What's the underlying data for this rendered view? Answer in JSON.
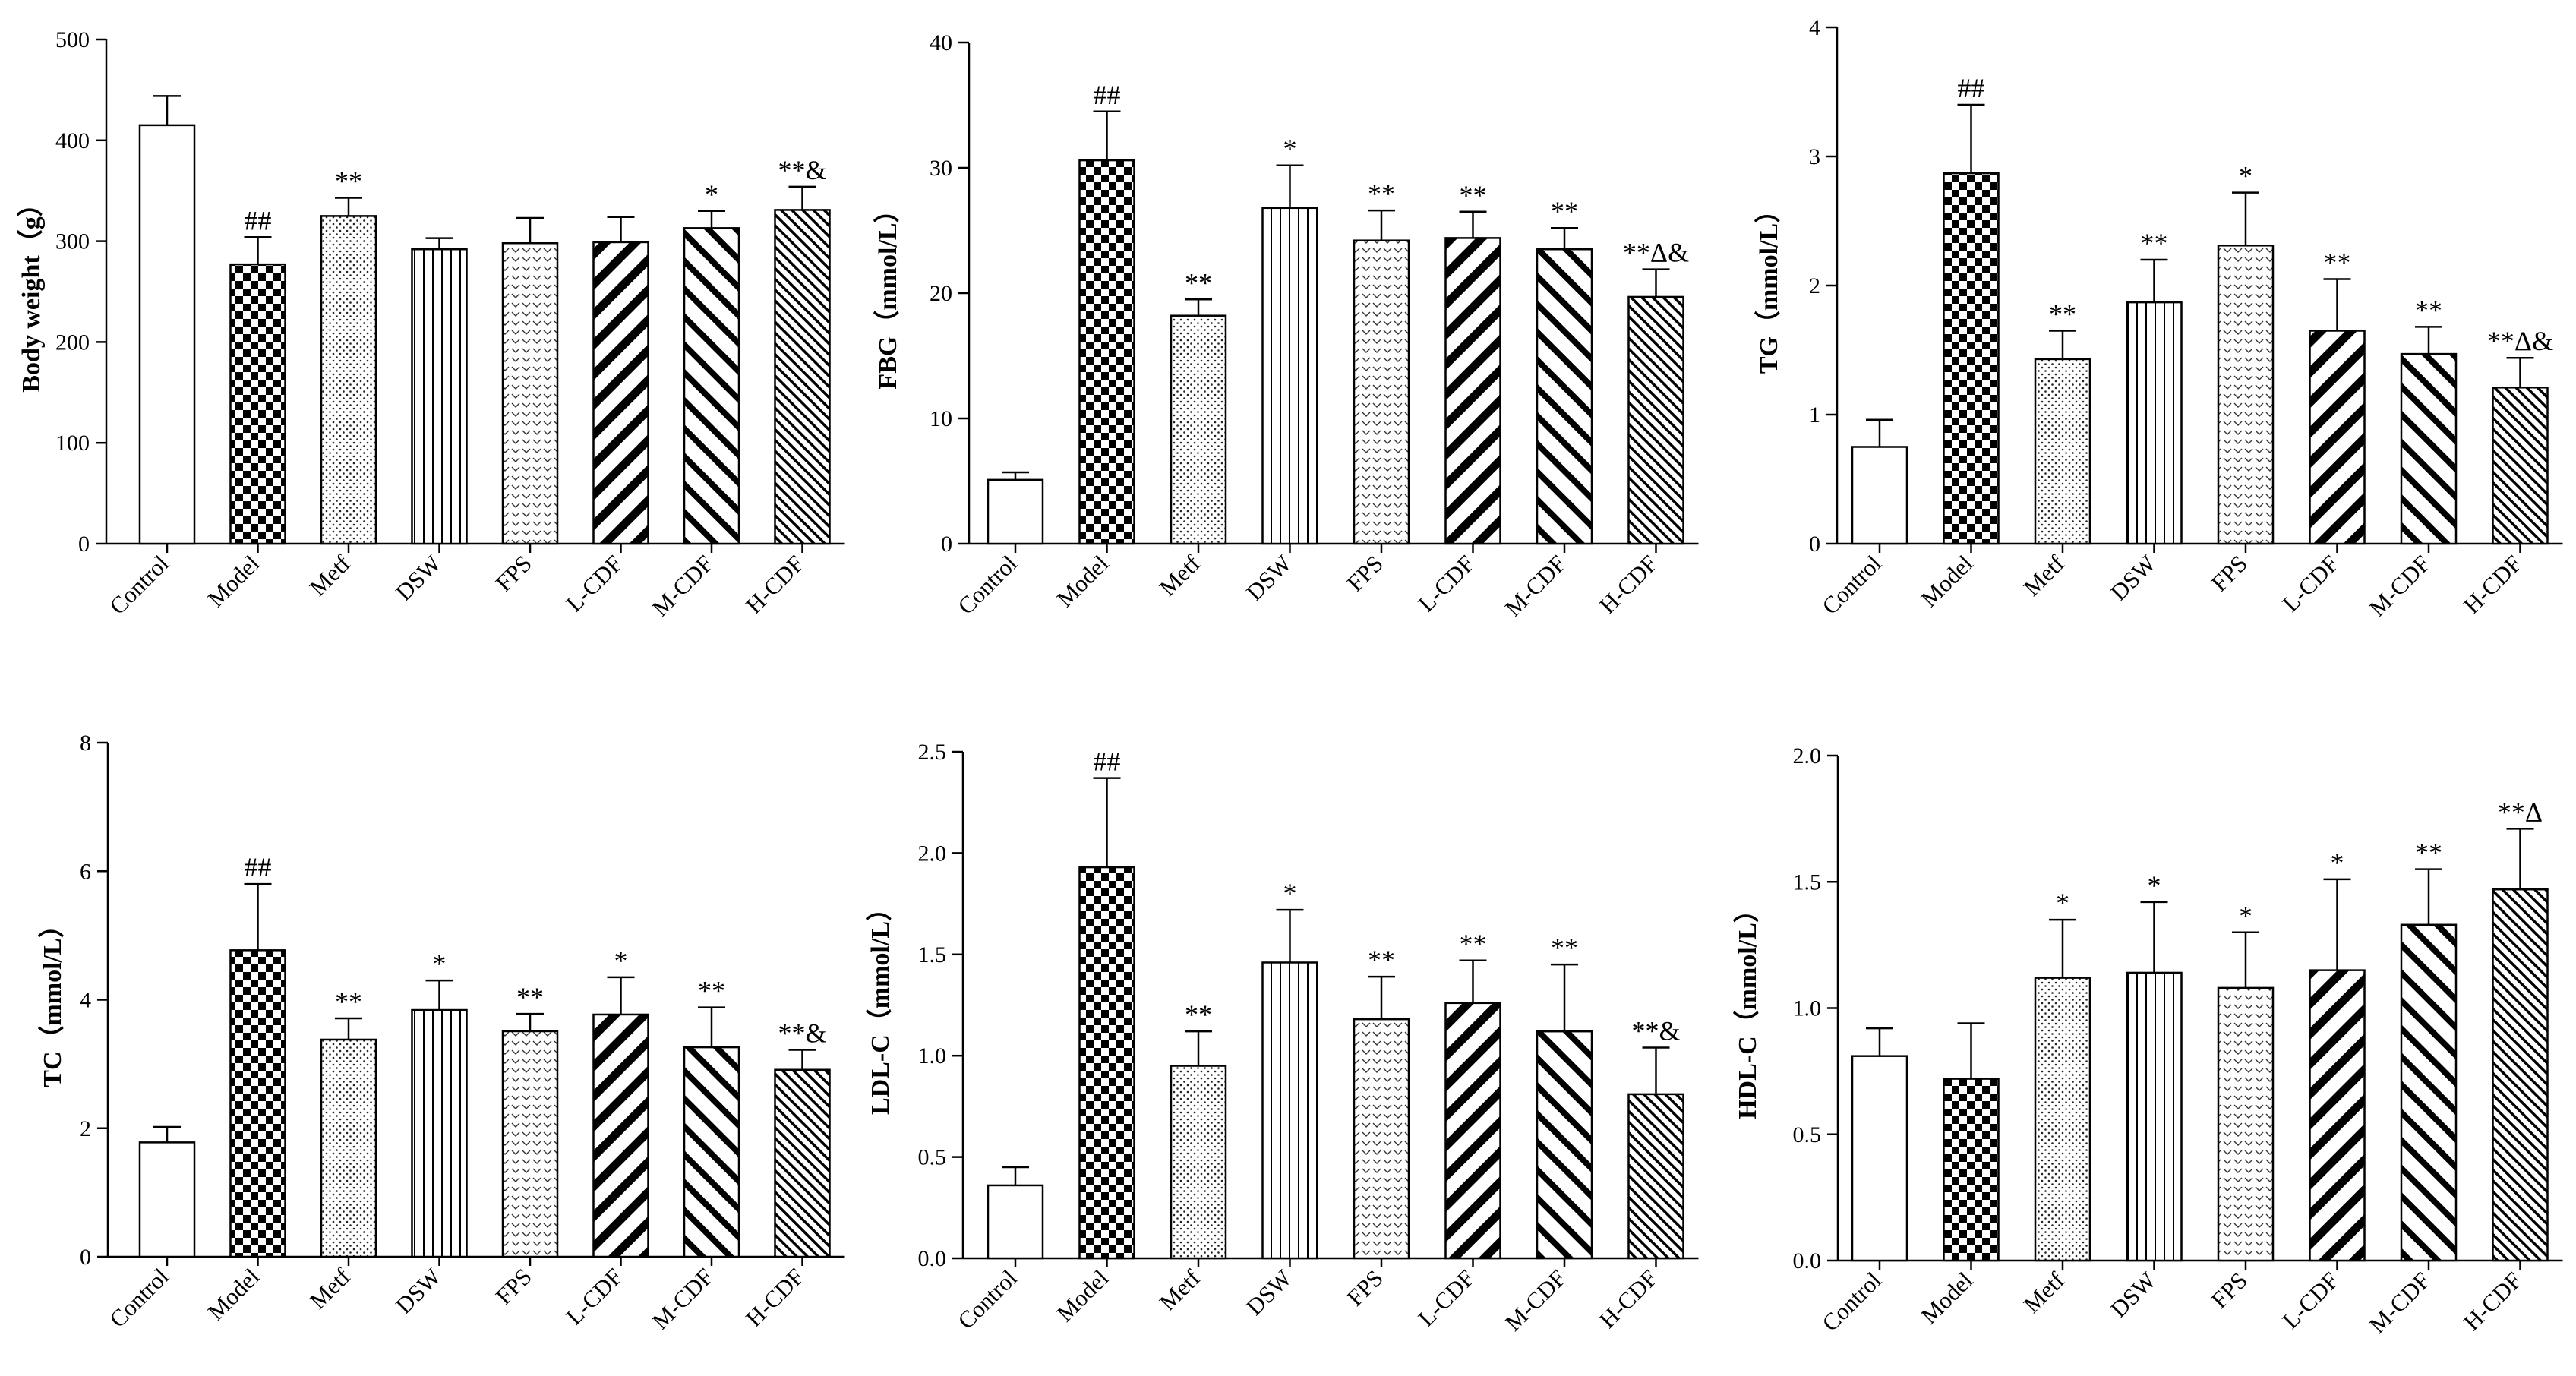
{
  "categories": [
    "Control",
    "Model",
    "Metf",
    "DSW",
    "FPS",
    "L-CDF",
    "M-CDF",
    "H-CDF"
  ],
  "patterns": [
    "open",
    "checker",
    "dots",
    "vlines",
    "chevron",
    "diag-bold",
    "diag-back",
    "diag-fine"
  ],
  "chart_data": [
    {
      "type": "bar",
      "ylabel": "Body weight（g）",
      "ylim": [
        0,
        500
      ],
      "ticks": [
        "0",
        "100",
        "200",
        "300",
        "400",
        "500"
      ],
      "categories": [
        "Control",
        "Model",
        "Metf",
        "DSW",
        "FPS",
        "L-CDF",
        "M-CDF",
        "H-CDF"
      ],
      "values": [
        415,
        277,
        325,
        292,
        298,
        299,
        313,
        331
      ],
      "errors": [
        29,
        27,
        18,
        11,
        25,
        25,
        17,
        23
      ],
      "annotations": [
        "",
        "##",
        "**",
        "",
        "",
        "",
        "*",
        "**&"
      ]
    },
    {
      "type": "bar",
      "ylabel": "FBG（mmol/L）",
      "ylim": [
        0,
        40
      ],
      "ticks": [
        "0",
        "10",
        "20",
        "30",
        "40"
      ],
      "categories": [
        "Control",
        "Model",
        "Metf",
        "DSW",
        "FPS",
        "L-CDF",
        "M-CDF",
        "H-CDF"
      ],
      "values": [
        5.1,
        30.6,
        18.2,
        26.8,
        24.2,
        24.4,
        23.5,
        19.7
      ],
      "errors": [
        0.6,
        3.9,
        1.3,
        3.4,
        2.4,
        2.1,
        1.7,
        2.2
      ],
      "annotations": [
        "",
        "##",
        "**",
        "*",
        "**",
        "**",
        "**",
        "**Δ&"
      ]
    },
    {
      "type": "bar",
      "ylabel": "TG（mmol/L）",
      "ylim": [
        0,
        4
      ],
      "ticks": [
        "0",
        "1",
        "2",
        "3",
        "4"
      ],
      "categories": [
        "Control",
        "Model",
        "Metf",
        "DSW",
        "FPS",
        "L-CDF",
        "M-CDF",
        "H-CDF"
      ],
      "values": [
        0.75,
        2.87,
        1.43,
        1.87,
        2.31,
        1.65,
        1.47,
        1.21
      ],
      "errors": [
        0.21,
        0.53,
        0.22,
        0.33,
        0.41,
        0.4,
        0.21,
        0.23
      ],
      "annotations": [
        "",
        "##",
        "**",
        "**",
        "*",
        "**",
        "**",
        "**Δ&"
      ]
    },
    {
      "type": "bar",
      "ylabel": "TC（mmol/L）",
      "ylim": [
        0,
        8
      ],
      "ticks": [
        "0",
        "2",
        "4",
        "6",
        "8"
      ],
      "categories": [
        "Control",
        "Model",
        "Metf",
        "DSW",
        "FPS",
        "L-CDF",
        "M-CDF",
        "H-CDF"
      ],
      "values": [
        1.78,
        4.77,
        3.38,
        3.84,
        3.51,
        3.77,
        3.26,
        2.91
      ],
      "errors": [
        0.24,
        1.03,
        0.33,
        0.46,
        0.27,
        0.58,
        0.62,
        0.31
      ],
      "annotations": [
        "",
        "##",
        "**",
        "*",
        "**",
        "*",
        "**",
        "**&"
      ]
    },
    {
      "type": "bar",
      "ylabel": "LDL-C（mmol/L）",
      "ylim": [
        0,
        2.5
      ],
      "ticks": [
        "0.0",
        "0.5",
        "1.0",
        "1.5",
        "2.0",
        "2.5"
      ],
      "categories": [
        "Control",
        "Model",
        "Metf",
        "DSW",
        "FPS",
        "L-CDF",
        "M-CDF",
        "H-CDF"
      ],
      "values": [
        0.36,
        1.93,
        0.95,
        1.46,
        1.18,
        1.26,
        1.12,
        0.81
      ],
      "errors": [
        0.09,
        0.44,
        0.17,
        0.26,
        0.21,
        0.21,
        0.33,
        0.23
      ],
      "annotations": [
        "",
        "##",
        "**",
        "*",
        "**",
        "**",
        "**",
        "**&"
      ]
    },
    {
      "type": "bar",
      "ylabel": "HDL-C（mmol/L）",
      "ylim": [
        0,
        2.0
      ],
      "ticks": [
        "0.0",
        "0.5",
        "1.0",
        "1.5",
        "2.0"
      ],
      "categories": [
        "Control",
        "Model",
        "Metf",
        "DSW",
        "FPS",
        "L-CDF",
        "M-CDF",
        "H-CDF"
      ],
      "values": [
        0.81,
        0.72,
        1.12,
        1.14,
        1.08,
        1.15,
        1.33,
        1.47
      ],
      "errors": [
        0.11,
        0.22,
        0.23,
        0.28,
        0.22,
        0.36,
        0.22,
        0.24
      ],
      "annotations": [
        "",
        "",
        "*",
        "*",
        "*",
        "*",
        "**",
        "**Δ"
      ]
    }
  ]
}
